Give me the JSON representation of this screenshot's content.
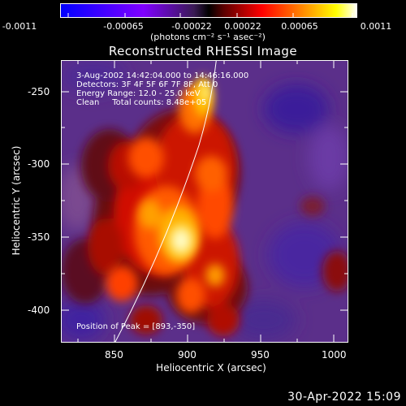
{
  "colorbar": {
    "ticks": [
      "-0.0011",
      "-0.00065",
      "-0.00022",
      "0.00022",
      "0.00065",
      "0.0011"
    ],
    "unit": "(photons cm⁻² s⁻¹ asec⁻²)"
  },
  "title": "Reconstructed RHESSI Image",
  "info": {
    "time_range": "3-Aug-2002 14:42:04.000 to 14:46:16.000",
    "detectors": "Detectors: 3F 4F 5F 6F 7F 8F, Att 0",
    "energy_range": "Energy Range: 12.0 - 25.0 keV",
    "clean": "Clean     Total counts: 8.48e+05",
    "peak": "Position of Peak = [893,-350]"
  },
  "axes": {
    "xlabel": "Heliocentric X (arcsec)",
    "ylabel": "Heliocentric Y (arcsec)",
    "xticks": [
      "850",
      "900",
      "950",
      "1000"
    ],
    "yticks": [
      "-250",
      "-300",
      "-350",
      "-400"
    ],
    "xlim": [
      815,
      1025
    ],
    "ylim": [
      -425,
      -225
    ]
  },
  "footer": "30-Apr-2022 15:09",
  "colors": {
    "background": "#000000",
    "colormap": [
      "#0000ff",
      "#7f00ff",
      "#5a2a8c",
      "#000000",
      "#8b0000",
      "#ff0000",
      "#ff8c00",
      "#ffff00",
      "#ffffff"
    ]
  }
}
